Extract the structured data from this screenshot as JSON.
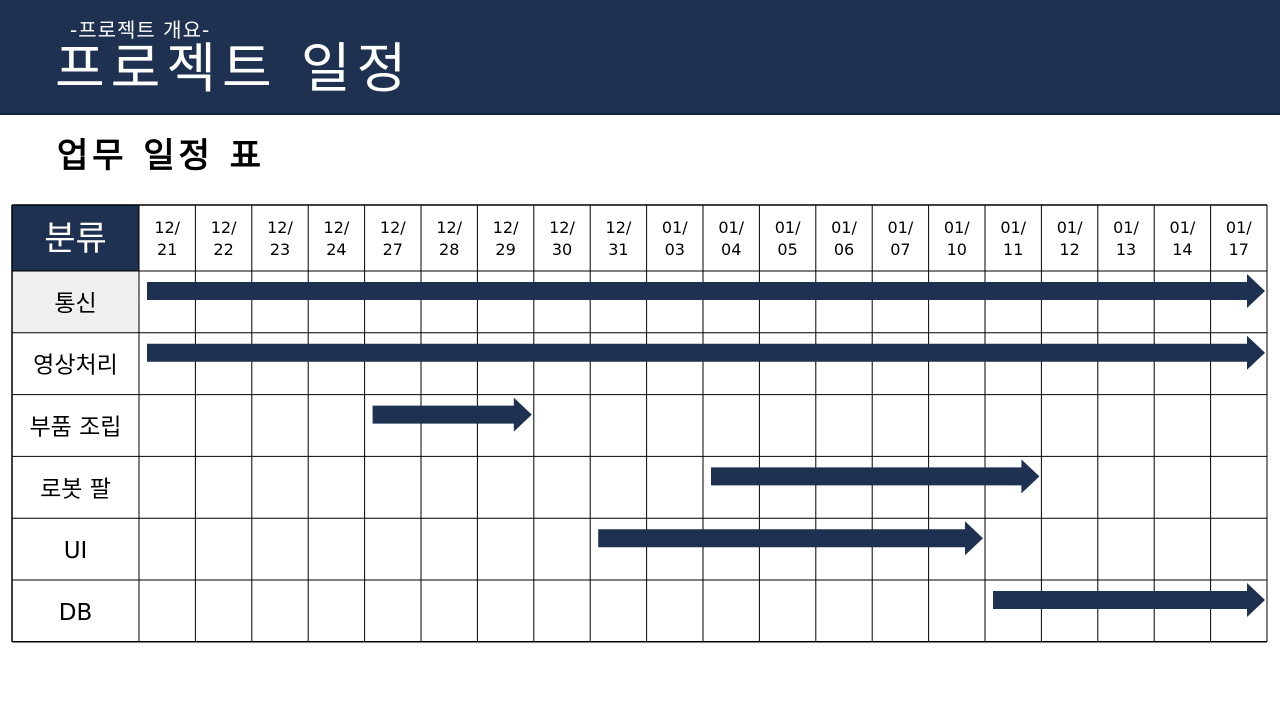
{
  "header": {
    "subtitle": "-프로젝트 개요-",
    "title": "프로젝트 일정"
  },
  "section_title": "업무 일정 표",
  "colors": {
    "navy": "#1f3150",
    "grid": "#000000",
    "highlight_cell": "#efefef"
  },
  "chart_data": {
    "type": "gantt",
    "corner_label": "분류",
    "dates": [
      "12/21",
      "12/22",
      "12/23",
      "12/24",
      "12/27",
      "12/28",
      "12/29",
      "12/30",
      "12/31",
      "01/03",
      "01/04",
      "01/05",
      "01/06",
      "01/07",
      "01/10",
      "01/11",
      "01/12",
      "01/13",
      "01/14",
      "01/17"
    ],
    "tasks": [
      {
        "label": "통신",
        "start": "12/21",
        "end": "01/17",
        "highlight": true
      },
      {
        "label": "영상처리",
        "start": "12/21",
        "end": "01/17"
      },
      {
        "label": "부품 조립",
        "start": "12/27",
        "end": "12/29"
      },
      {
        "label": "로봇 팔",
        "start": "01/04",
        "end": "01/11"
      },
      {
        "label": "UI",
        "start": "12/31",
        "end": "01/10"
      },
      {
        "label": "DB",
        "start": "01/11",
        "end": "01/17"
      }
    ]
  }
}
